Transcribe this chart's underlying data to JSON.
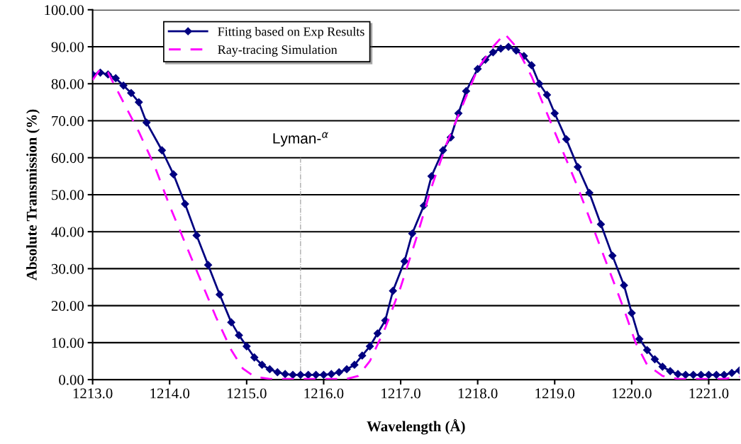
{
  "chart_data": {
    "type": "line",
    "xlabel": "Wavelength (Å)",
    "ylabel": "Absolute Transmission (%)",
    "xlim": [
      1213.0,
      1221.4
    ],
    "ylim": [
      0,
      100
    ],
    "xticks": [
      {
        "value": 1213,
        "label": "1213.0"
      },
      {
        "value": 1214,
        "label": "1214.0"
      },
      {
        "value": 1215,
        "label": "1215.0"
      },
      {
        "value": 1216,
        "label": "1216.0"
      },
      {
        "value": 1217,
        "label": "1217.0"
      },
      {
        "value": 1218,
        "label": "1218.0"
      },
      {
        "value": 1219,
        "label": "1219.0"
      },
      {
        "value": 1220,
        "label": "1220.0"
      },
      {
        "value": 1221,
        "label": "1221.0"
      }
    ],
    "yticks": [
      {
        "value": 0,
        "label": "0.00"
      },
      {
        "value": 10,
        "label": "10.00"
      },
      {
        "value": 20,
        "label": "20.00"
      },
      {
        "value": 30,
        "label": "30.00"
      },
      {
        "value": 40,
        "label": "40.00"
      },
      {
        "value": 50,
        "label": "50.00"
      },
      {
        "value": 60,
        "label": "60.00"
      },
      {
        "value": 70,
        "label": "70.00"
      },
      {
        "value": 80,
        "label": "80.00"
      },
      {
        "value": 90,
        "label": "90.00"
      },
      {
        "value": 100,
        "label": "100.00"
      }
    ],
    "grid": "y",
    "legend": "top left",
    "ref_lines": [
      {
        "axis": "x",
        "value": 1215.7,
        "label": "Lyman-$^{α}$",
        "color": "#999999",
        "line_style": "dashdot"
      }
    ],
    "series": [
      {
        "name": "Fitting based on Exp Results",
        "color": "#000080",
        "marker": "diamond",
        "line_style": "solid",
        "x": [
          1213.0,
          1213.1,
          1213.2,
          1213.3,
          1213.4,
          1213.5,
          1213.6,
          1213.7,
          1213.9,
          1214.05,
          1214.2,
          1214.35,
          1214.5,
          1214.65,
          1214.8,
          1214.9,
          1215.0,
          1215.1,
          1215.2,
          1215.3,
          1215.4,
          1215.5,
          1215.6,
          1215.7,
          1215.8,
          1215.9,
          1216.0,
          1216.1,
          1216.2,
          1216.3,
          1216.4,
          1216.5,
          1216.6,
          1216.7,
          1216.8,
          1216.9,
          1217.05,
          1217.15,
          1217.3,
          1217.4,
          1217.55,
          1217.65,
          1217.75,
          1217.85,
          1218.0,
          1218.1,
          1218.2,
          1218.3,
          1218.4,
          1218.5,
          1218.6,
          1218.7,
          1218.8,
          1218.9,
          1219.0,
          1219.15,
          1219.3,
          1219.45,
          1219.6,
          1219.75,
          1219.9,
          1220.0,
          1220.1,
          1220.2,
          1220.3,
          1220.4,
          1220.5,
          1220.6,
          1220.7,
          1220.8,
          1220.9,
          1221.0,
          1221.1,
          1221.2,
          1221.3,
          1221.4
        ],
        "values": [
          82.5,
          83,
          82.5,
          81.5,
          79.5,
          77.5,
          75,
          69.5,
          62,
          55.5,
          47.5,
          39,
          31,
          23,
          15.5,
          12,
          9,
          6,
          4,
          2.8,
          2,
          1.5,
          1.3,
          1.3,
          1.3,
          1.3,
          1.3,
          1.5,
          2,
          2.8,
          4,
          6.5,
          9,
          12.5,
          16,
          24,
          32,
          39.5,
          47,
          55,
          62,
          65.5,
          72,
          78,
          84,
          86.5,
          88.5,
          89.5,
          90,
          89,
          87.5,
          85,
          80,
          77,
          72,
          65,
          57.5,
          50.5,
          42,
          33.5,
          25.5,
          18,
          11,
          8,
          5.5,
          3.5,
          2.3,
          1.5,
          1.3,
          1.3,
          1.3,
          1.3,
          1.3,
          1.3,
          1.8,
          2.5
        ]
      },
      {
        "name": "Ray-tracing Simulation",
        "color": "#ff00ff",
        "marker": "none",
        "line_style": "dashed",
        "x": [
          1213.0,
          1213.1,
          1213.2,
          1213.3,
          1213.4,
          1213.6,
          1213.8,
          1214.0,
          1214.2,
          1214.4,
          1214.6,
          1214.8,
          1214.95,
          1215.1,
          1215.3,
          1216.0,
          1216.3,
          1216.45,
          1216.6,
          1216.8,
          1217.0,
          1217.2,
          1217.4,
          1217.6,
          1217.8,
          1218.0,
          1218.2,
          1218.35,
          1218.5,
          1218.7,
          1218.9,
          1219.1,
          1219.3,
          1219.5,
          1219.7,
          1219.9,
          1220.05,
          1220.2,
          1220.4,
          1220.6,
          1221.2,
          1221.4
        ],
        "values": [
          81,
          84,
          83,
          79,
          75,
          67,
          58,
          47,
          37,
          27,
          17,
          8,
          3,
          0.8,
          0.2,
          0.2,
          0.2,
          1,
          5,
          14,
          25,
          38,
          52,
          64,
          74,
          84,
          90,
          93.5,
          90,
          82,
          72,
          62,
          52,
          41,
          30,
          19,
          10,
          4,
          1,
          0.2,
          0.2,
          0.8
        ]
      }
    ]
  }
}
